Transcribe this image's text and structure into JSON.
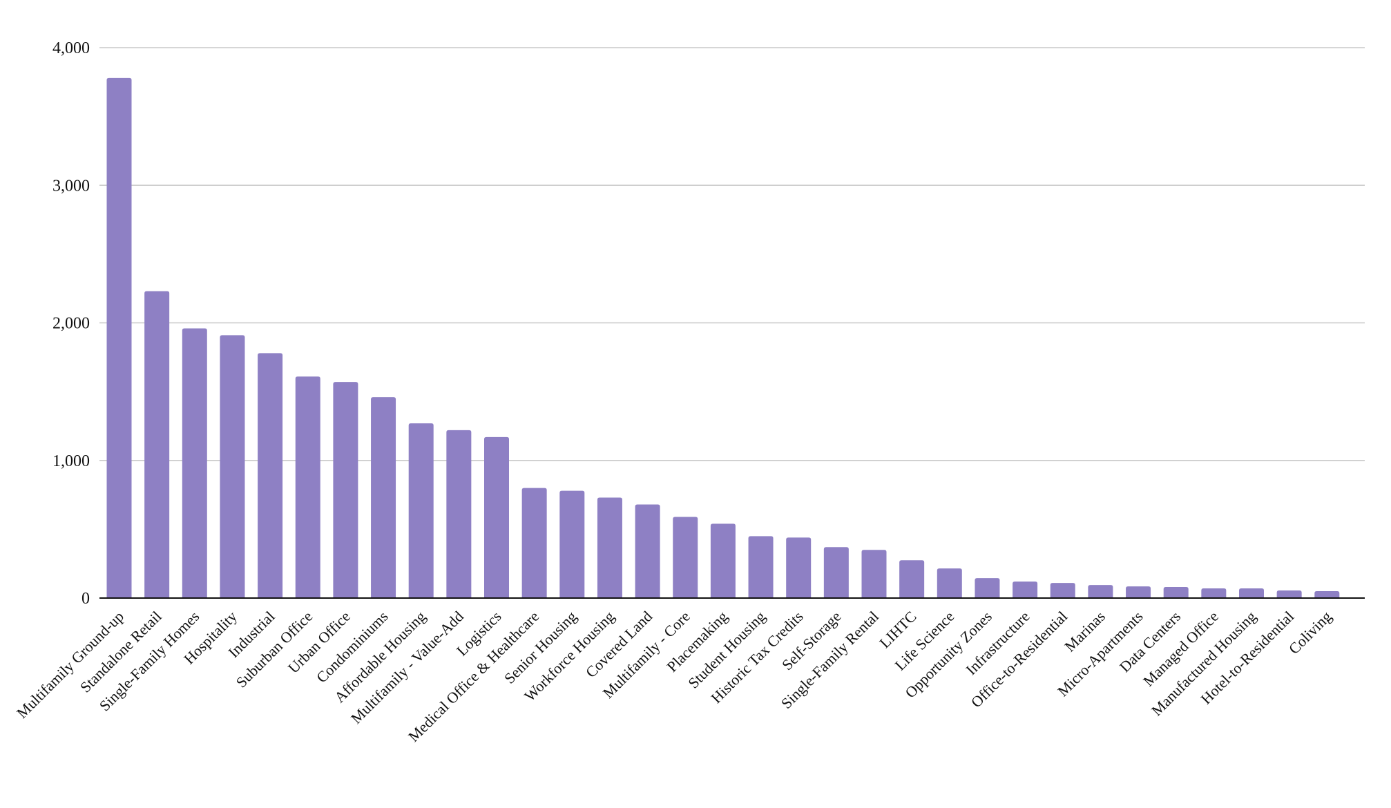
{
  "chart_data": {
    "type": "bar",
    "title": "",
    "xlabel": "",
    "ylabel": "",
    "ylim": [
      0,
      4000
    ],
    "yticks": [
      0,
      1000,
      2000,
      3000,
      4000
    ],
    "ytick_labels": [
      "0",
      "1,000",
      "2,000",
      "3,000",
      "4,000"
    ],
    "grid": true,
    "legend": "none",
    "bar_color": "#8e80c4",
    "categories": [
      "Multifamily Ground-up",
      "Standalone Retail",
      "Single-Family Homes",
      "Hospitality",
      "Industrial",
      "Suburban Office",
      "Urban Office",
      "Condominiums",
      "Affordable Housing",
      "Multifamily - Value-Add",
      "Logistics",
      "Medical Office & Healthcare",
      "Senior Housing",
      "Workforce Housing",
      "Covered Land",
      "Multifamily - Core",
      "Placemaking",
      "Student Housing",
      "Historic Tax Credits",
      "Self-Storage",
      "Single-Family Rental",
      "LIHTC",
      "Life Science",
      "Opportunity Zones",
      "Infrastructure",
      "Office-to-Residential",
      "Marinas",
      "Micro-Apartments",
      "Data Centers",
      "Managed Office",
      "Manufactured Housing",
      "Hotel-to-Residential",
      "Coliving"
    ],
    "values": [
      3780,
      2230,
      1960,
      1910,
      1780,
      1610,
      1570,
      1460,
      1270,
      1220,
      1170,
      800,
      780,
      730,
      680,
      590,
      540,
      450,
      440,
      370,
      350,
      275,
      215,
      145,
      120,
      110,
      95,
      85,
      80,
      70,
      70,
      55,
      50
    ]
  }
}
